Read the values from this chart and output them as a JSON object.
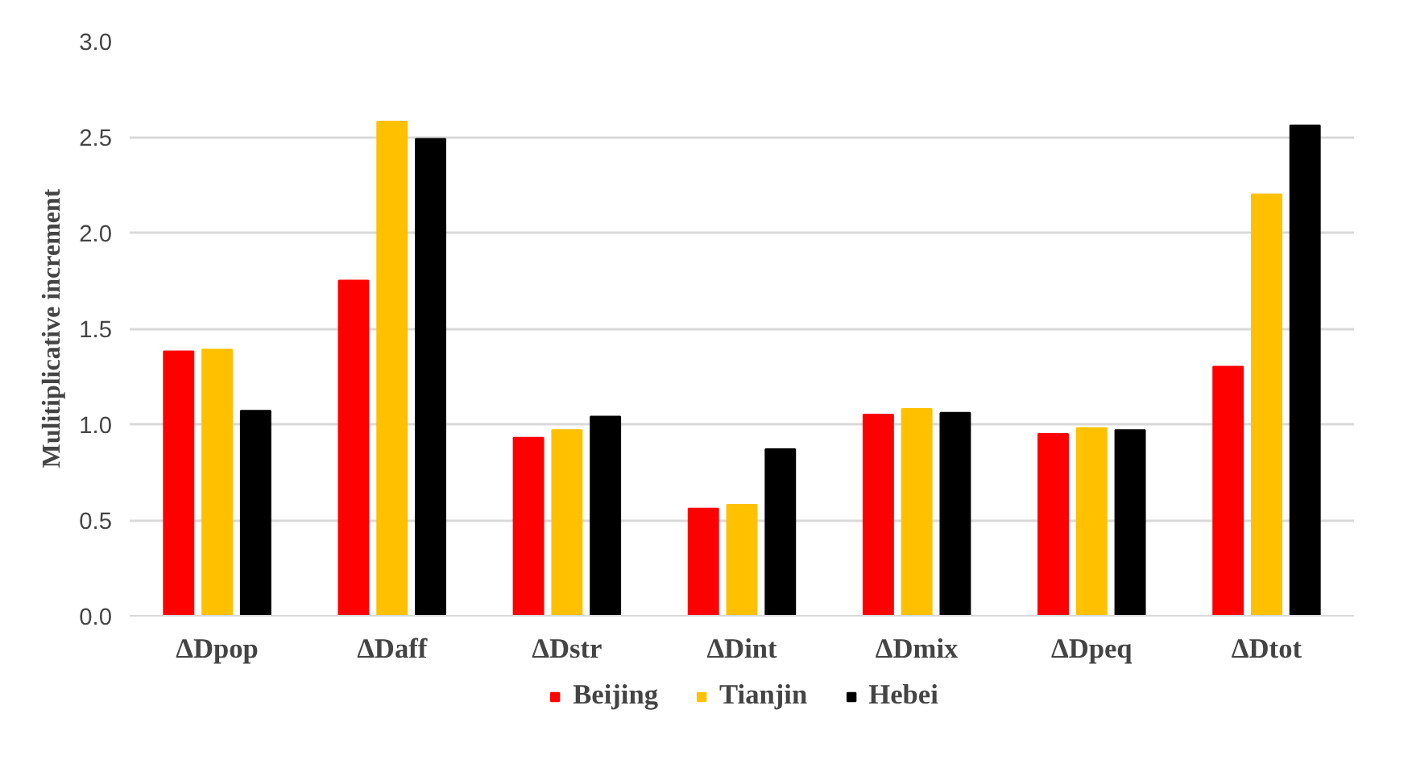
{
  "chart_data": {
    "type": "bar",
    "ylabel": "Mulitiplicative increment",
    "categories": [
      "ΔDpop",
      "ΔDaff",
      "ΔDstr",
      "ΔDint",
      "ΔDmix",
      "ΔDpeq",
      "ΔDtot"
    ],
    "series": [
      {
        "name": "Beijing",
        "color": "#ff0000",
        "values": [
          1.38,
          1.75,
          0.93,
          0.56,
          1.05,
          0.95,
          1.3
        ]
      },
      {
        "name": "Tianjin",
        "color": "#ffc000",
        "values": [
          1.39,
          2.58,
          0.97,
          0.58,
          1.08,
          0.98,
          2.2
        ]
      },
      {
        "name": "Hebei",
        "color": "#000000",
        "values": [
          1.07,
          2.49,
          1.04,
          0.87,
          1.06,
          0.97,
          2.56
        ]
      }
    ],
    "ylim": [
      0,
      3.0
    ],
    "yticks": [
      {
        "value": 0,
        "label": "0.0"
      },
      {
        "value": 0.5,
        "label": "0.5"
      },
      {
        "value": 1,
        "label": "1.0"
      },
      {
        "value": 1.5,
        "label": "1.5"
      },
      {
        "value": 2,
        "label": "2.0"
      },
      {
        "value": 2.5,
        "label": "2.5"
      },
      {
        "value": 3,
        "label": "3.0"
      }
    ],
    "grid": "y",
    "legend": "bottom"
  }
}
